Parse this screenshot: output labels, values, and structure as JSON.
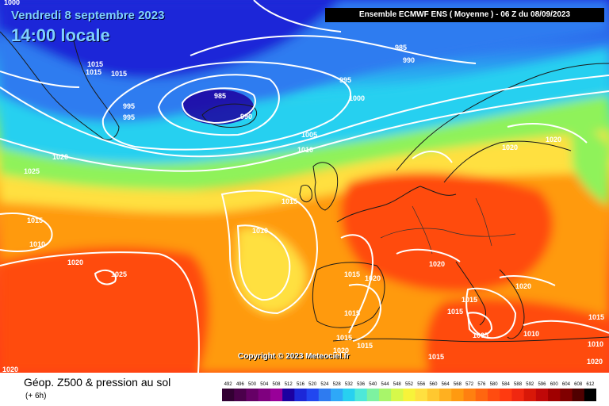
{
  "header": {
    "date": "Vendredi 8 septembre 2023",
    "time": "14:00 locale",
    "model": "Ensemble ECMWF ENS  ( Moyenne )  -  06 Z du 08/09/2023"
  },
  "map": {
    "copyright": "Copyright © 2023 Meteociel.fr",
    "isobar_labels": [
      "1000",
      "1015",
      "1015",
      "1015",
      "995",
      "995",
      "985",
      "990",
      "985",
      "990",
      "995",
      "1000",
      "1005",
      "1010",
      "1020",
      "1025",
      "1015",
      "1010",
      "1020",
      "1025",
      "1015",
      "1010",
      "1020",
      "1020",
      "1020",
      "1015",
      "1020",
      "1020",
      "1015",
      "1015",
      "1015",
      "1015",
      "1020",
      "1015",
      "1015",
      "1005",
      "1010",
      "1010",
      "1020",
      "1015",
      "1020"
    ],
    "colors": {
      "deep_low": "#1c28d8",
      "low": "#2e7bf0",
      "cyan": "#28d0f0",
      "green": "#8ff25a",
      "yellow": "#ffe040",
      "orange": "#ff9a10",
      "red": "#ff3a10",
      "coast": "#1a1a1a",
      "isobar": "#ffffff"
    }
  },
  "footer": {
    "title": "Géop. Z500 & pression au sol",
    "subtitle": "(+ 6h)"
  },
  "legend": {
    "labels": [
      "492",
      "496",
      "500",
      "504",
      "508",
      "512",
      "516",
      "520",
      "524",
      "528",
      "532",
      "536",
      "540",
      "544",
      "548",
      "552",
      "556",
      "560",
      "564",
      "568",
      "572",
      "576",
      "580",
      "584",
      "588",
      "592",
      "596",
      "600",
      "604",
      "608",
      "612"
    ],
    "colors": [
      "#330033",
      "#4b004b",
      "#660066",
      "#7f007f",
      "#990099",
      "#1c00a0",
      "#1c28d8",
      "#2147f0",
      "#2e7bf0",
      "#2ea8f8",
      "#28d0f0",
      "#4ee8d8",
      "#7df2a0",
      "#a8f56a",
      "#d6f84a",
      "#f7f33a",
      "#ffe040",
      "#ffc830",
      "#ffb020",
      "#ff9a10",
      "#ff8010",
      "#ff6610",
      "#ff4c10",
      "#ff3a10",
      "#f02810",
      "#d81808",
      "#c00808",
      "#a00000",
      "#800000",
      "#500000",
      "#000000"
    ]
  }
}
